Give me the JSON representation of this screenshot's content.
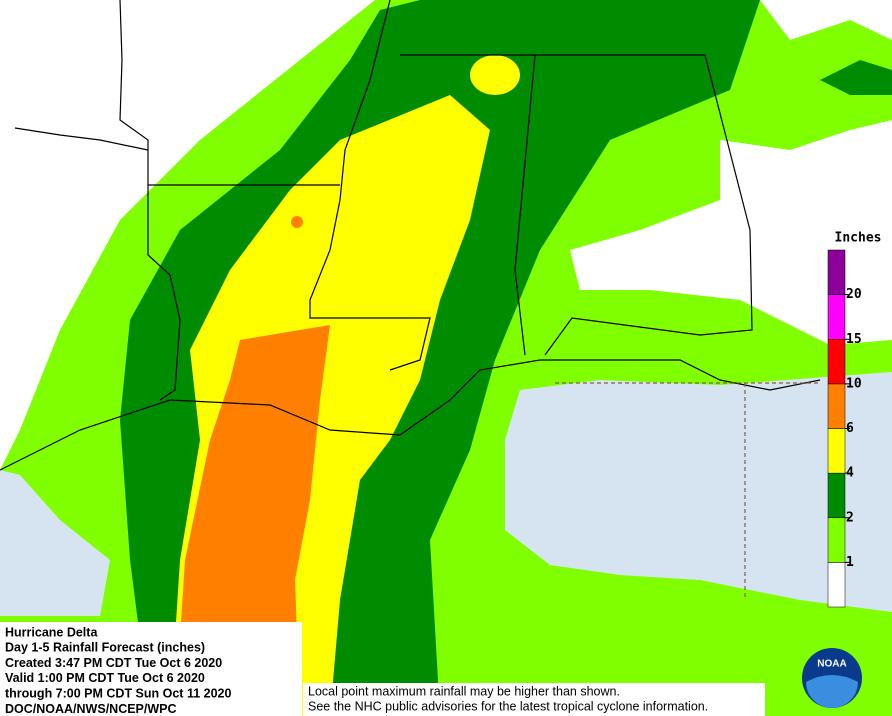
{
  "legend": {
    "title": "Inches",
    "bins": [
      {
        "color": "#ffffff"
      },
      {
        "color": "#7fff00"
      },
      {
        "color": "#008c00"
      },
      {
        "color": "#ffff00"
      },
      {
        "color": "#ff8000"
      },
      {
        "color": "#ff0000"
      },
      {
        "color": "#ff00ff"
      },
      {
        "color": "#8c0099"
      }
    ],
    "ticks": [
      1,
      2,
      4,
      6,
      10,
      15,
      20
    ]
  },
  "info": {
    "lines": [
      "Hurricane Delta",
      "Day 1-5 Rainfall Forecast (inches)",
      "Created 3:47 PM CDT Tue Oct 6 2020",
      "Valid 1:00 PM CDT Tue Oct 6 2020",
      "through 7:00 PM CDT Sun Oct 11 2020",
      "DOC/NOAA/NWS/NCEP/WPC"
    ]
  },
  "disclaimer": {
    "lines": [
      "Local point maximum rainfall may be higher than shown.",
      "See the NHC public advisories for the latest tropical cyclone information."
    ]
  },
  "logo": {
    "text": "NOAA"
  }
}
